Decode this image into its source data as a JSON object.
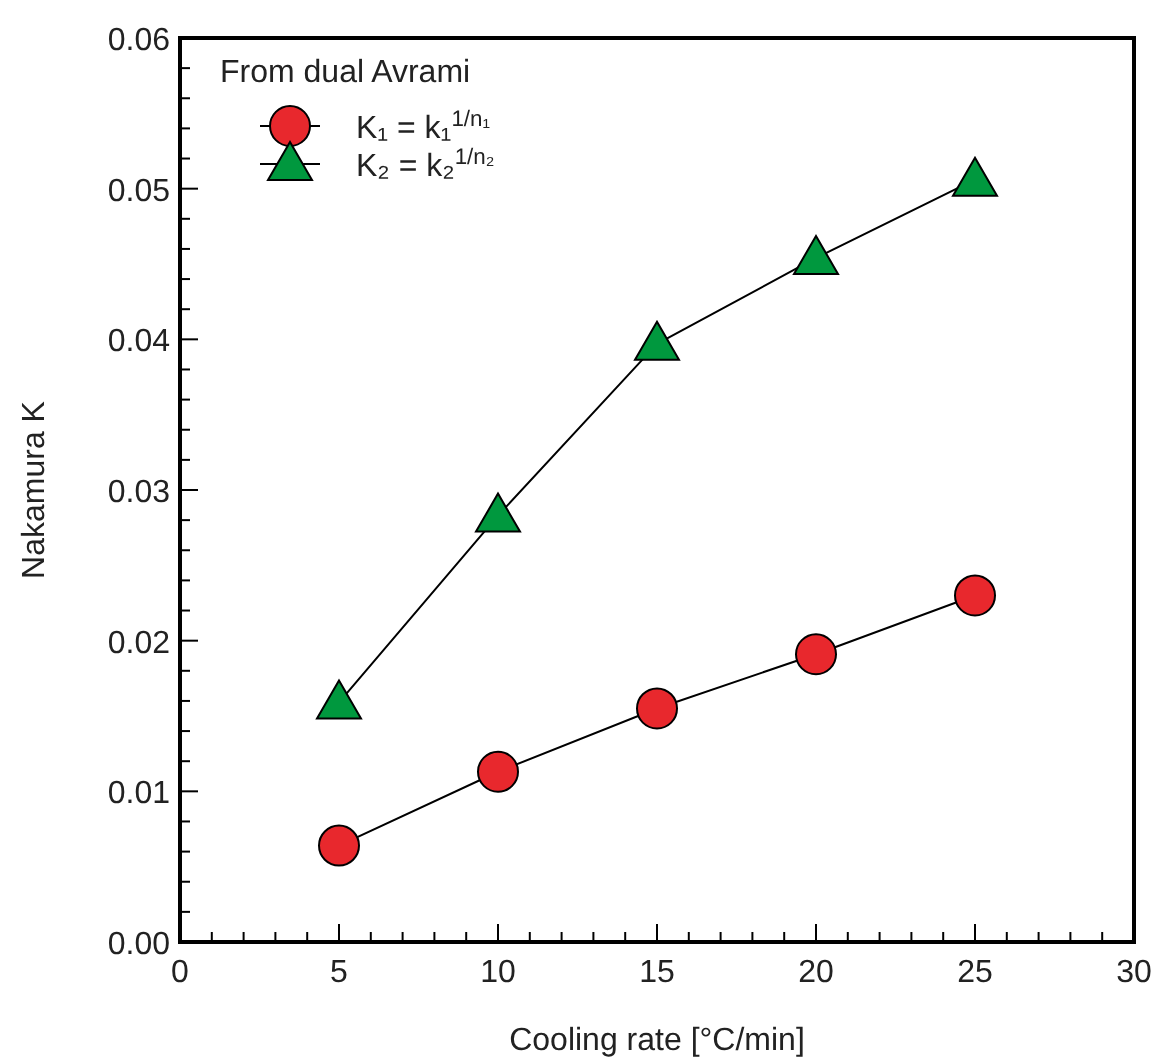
{
  "chart_data": {
    "type": "line",
    "xlabel": "Cooling rate [°C/min]",
    "ylabel": "Nakamura K",
    "legend_title": "From dual Avrami",
    "legend": "top left",
    "line_style": "solid",
    "grid": false,
    "x": [
      5,
      10,
      15,
      20,
      25
    ],
    "xlim": [
      0,
      30
    ],
    "xticks": [
      0,
      5,
      10,
      15,
      20,
      25,
      30
    ],
    "ylim": [
      0,
      0.06
    ],
    "yticks": [
      {
        "value": 0,
        "label": "0.00"
      },
      {
        "value": 0.01,
        "label": "0.01"
      },
      {
        "value": 0.02,
        "label": "0.02"
      },
      {
        "value": 0.03,
        "label": "0.03"
      },
      {
        "value": 0.04,
        "label": "0.04"
      },
      {
        "value": 0.05,
        "label": "0.05"
      },
      {
        "value": 0.06,
        "label": "0.06"
      }
    ],
    "series": [
      {
        "name": "K₁ = k₁$^{1/n₁}$",
        "color": "#e8282d",
        "marker": "circle",
        "values": [
          0.0064,
          0.0113,
          0.0155,
          0.0191,
          0.023
        ]
      },
      {
        "name": "K₂ = k₂$^{1/n₂}$",
        "color": "#00983e",
        "marker": "triangle",
        "values": [
          0.0159,
          0.0283,
          0.0397,
          0.0454,
          0.0506
        ]
      }
    ]
  }
}
